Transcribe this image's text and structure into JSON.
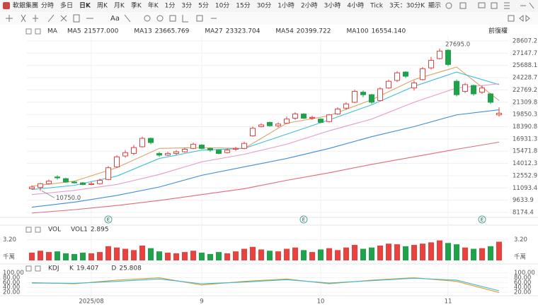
{
  "toolbar": {
    "symbol": "軟銀集團",
    "periods": [
      "分時",
      "多日",
      "日K",
      "周K",
      "月K",
      "季K",
      "年K",
      "1分",
      "3分",
      "5分",
      "10分",
      "15分",
      "30分",
      "1小時",
      "2小時",
      "3小時",
      "4小時",
      "Tick",
      "3天：30分K"
    ],
    "active_period": "日K",
    "display": "顯示"
  },
  "chart_data": [
    {
      "type": "candlestick",
      "indicator_label": "MA",
      "adjust_label": "前復權",
      "categories": [
        null,
        null,
        null,
        null,
        null,
        null,
        null,
        "2025/08",
        null,
        null,
        null,
        null,
        null,
        null,
        null,
        null,
        null,
        null,
        null,
        null,
        "9",
        null,
        null,
        null,
        null,
        null,
        null,
        null,
        null,
        null,
        null,
        null,
        null,
        null,
        "10",
        null,
        null,
        null,
        null,
        null,
        null,
        null,
        null,
        null,
        null,
        null,
        null,
        null,
        null,
        "11",
        null,
        null,
        null,
        null,
        null,
        null
      ],
      "events": [
        null,
        null,
        null,
        null,
        null,
        null,
        null,
        null,
        null,
        "E",
        null,
        null,
        null,
        null,
        null,
        null,
        null,
        null,
        null,
        null,
        null,
        null,
        null,
        null,
        null,
        null,
        null,
        null,
        null,
        null,
        null,
        null,
        "E",
        null,
        null,
        null,
        null,
        null,
        null,
        null,
        null,
        null,
        null,
        null,
        null,
        null,
        null,
        null,
        null,
        null,
        null,
        null,
        null,
        "E",
        null,
        null
      ],
      "open": [
        11000,
        11150,
        11600,
        12400,
        12200,
        11800,
        11700,
        11500,
        11600,
        12100,
        13600,
        14900,
        15200,
        16000,
        17000,
        15200,
        15000,
        15200,
        15400,
        15800,
        16200,
        15800,
        15600,
        15300,
        15700,
        15800,
        17300,
        18400,
        18900,
        18500,
        18800,
        19400,
        19900,
        19400,
        19300,
        19000,
        19900,
        20600,
        21300,
        22500,
        22200,
        21500,
        23000,
        23900,
        24900,
        23000,
        24000,
        25400,
        26500,
        27500,
        23800,
        22600,
        23300,
        22500,
        22300,
        19800
      ],
      "high": [
        11400,
        11700,
        12100,
        12600,
        12300,
        11950,
        11800,
        11800,
        12200,
        13700,
        15000,
        15600,
        16200,
        17200,
        17100,
        15400,
        15400,
        15600,
        15900,
        16500,
        16300,
        15900,
        15700,
        15800,
        16000,
        16600,
        18400,
        18800,
        19000,
        18900,
        19600,
        20100,
        20000,
        19700,
        19400,
        19900,
        20700,
        21300,
        22800,
        22700,
        22300,
        23100,
        24000,
        25000,
        25000,
        23900,
        25500,
        26700,
        27695,
        27600,
        24000,
        23600,
        23400,
        23300,
        22400,
        20700
      ],
      "low": [
        10900,
        10750,
        11500,
        12100,
        11700,
        11600,
        11400,
        11400,
        11500,
        12000,
        13500,
        14700,
        15000,
        15900,
        16300,
        14800,
        14900,
        15000,
        15300,
        15700,
        15700,
        15400,
        15100,
        15200,
        15500,
        15700,
        17200,
        18300,
        18400,
        18300,
        18700,
        19200,
        19300,
        19200,
        18800,
        18900,
        19800,
        20400,
        21200,
        21900,
        21100,
        21400,
        22900,
        23700,
        24200,
        22700,
        23900,
        25200,
        26400,
        25600,
        22000,
        22400,
        22100,
        22300,
        21100,
        19600
      ],
      "close": [
        11200,
        11600,
        11900,
        12300,
        11800,
        11700,
        11500,
        11600,
        12000,
        13500,
        14800,
        15300,
        15900,
        17000,
        16500,
        15000,
        15200,
        15400,
        15700,
        16300,
        15800,
        15600,
        15200,
        15600,
        15800,
        16400,
        18200,
        18600,
        18500,
        18700,
        19300,
        19900,
        19400,
        19500,
        18900,
        19800,
        20500,
        21100,
        22600,
        22200,
        21300,
        22900,
        23800,
        24800,
        24400,
        23600,
        25300,
        26300,
        27400,
        25800,
        22200,
        23400,
        22300,
        23000,
        21300,
        20000
      ],
      "high_labels": [
        null,
        null,
        null,
        null,
        null,
        null,
        null,
        null,
        null,
        null,
        null,
        null,
        null,
        null,
        null,
        null,
        null,
        null,
        null,
        null,
        null,
        null,
        null,
        null,
        null,
        null,
        null,
        null,
        null,
        null,
        null,
        null,
        null,
        null,
        null,
        null,
        null,
        null,
        null,
        null,
        null,
        null,
        null,
        null,
        null,
        null,
        null,
        null,
        "27695.0",
        null,
        null,
        null,
        null,
        null,
        null,
        null
      ],
      "low_labels": [
        null,
        "10750.0",
        null,
        null,
        null,
        null,
        null,
        null,
        null,
        null,
        null,
        null,
        null,
        null,
        null,
        null,
        null,
        null,
        null,
        null,
        null,
        null,
        null,
        null,
        null,
        null,
        null,
        null,
        null,
        null,
        null,
        null,
        null,
        null,
        null,
        null,
        null,
        null,
        null,
        null,
        null,
        null,
        null,
        null,
        null,
        null,
        null,
        null,
        null,
        null,
        null,
        null,
        null,
        null,
        null,
        null
      ],
      "up_color": "#e8413e",
      "down_color": "#1fa34a",
      "ylim": [
        8174.4,
        28607.2
      ],
      "yticks": [
        28607.2,
        27147.7,
        25688.1,
        24228.7,
        22769.2,
        21309.8,
        19850.3,
        18390.8,
        16931.3,
        15471.8,
        14012.3,
        12552.9,
        11093.4,
        9633.9,
        8174.4
      ],
      "grid": true,
      "x": [
        0,
        5,
        10,
        15,
        20,
        25,
        30,
        35,
        40,
        45,
        50,
        55
      ],
      "series": [
        {
          "name": "MA5",
          "color": "#d8a56a",
          "legend_value": 21577,
          "legend_label": "21577.000",
          "values": [
            11300,
            11900,
            13500,
            15800,
            15900,
            15800,
            18800,
            19700,
            21600,
            24000,
            25500,
            21500
          ]
        },
        {
          "name": "MA13",
          "color": "#3fbfd8",
          "legend_value": 23665.769,
          "legend_label": "23665.769",
          "values": [
            10900,
            11400,
            12500,
            14600,
            15600,
            15800,
            17500,
            19200,
            21000,
            23200,
            24900,
            23400
          ]
        },
        {
          "name": "MA27",
          "color": "#e79ccb",
          "legend_value": 23323.704,
          "legend_label": "23323.704",
          "values": [
            10300,
            10800,
            11500,
            12700,
            14200,
            15100,
            16300,
            17900,
            19300,
            21300,
            23000,
            23500
          ]
        },
        {
          "name": "MA54",
          "color": "#3b8de0",
          "legend_value": 20399.722,
          "legend_label": "20399.722",
          "values": [
            8800,
            9400,
            10200,
            11200,
            12600,
            13600,
            14600,
            15800,
            17200,
            18400,
            19800,
            20400
          ]
        },
        {
          "name": "MA100",
          "color": "#e06a7c",
          "legend_value": 16554.14,
          "legend_label": "16554.140",
          "values": [
            8100,
            8500,
            9000,
            9600,
            10300,
            11000,
            12000,
            12900,
            13900,
            14800,
            15700,
            16550
          ]
        }
      ]
    },
    {
      "type": "bar",
      "title": "VOL",
      "unit": "千萬",
      "series": [
        {
          "name": "VOL1",
          "color": "#e8413e",
          "legend_value": 2.895,
          "legend_label": "2.895",
          "values": [
            1.2,
            1.5,
            1.3,
            1.4,
            1.1,
            1.0,
            1.2,
            1.1,
            1.3,
            2.2,
            2.0,
            1.8,
            1.6,
            2.3,
            1.9,
            1.4,
            1.2,
            1.1,
            1.3,
            1.5,
            1.2,
            1.0,
            1.3,
            1.1,
            1.4,
            1.8,
            2.1,
            1.7,
            1.5,
            1.4,
            1.8,
            2.0,
            1.6,
            1.3,
            1.7,
            1.9,
            1.6,
            2.0,
            2.4,
            1.8,
            2.0,
            2.3,
            2.6,
            2.5,
            2.2,
            2.4,
            2.6,
            2.8,
            3.1,
            2.7,
            2.5,
            2.0,
            1.8,
            1.9,
            2.2,
            2.9
          ]
        }
      ],
      "ylim": [
        0,
        3.5
      ],
      "yticks": [
        {
          "value": 3.2,
          "label": "3.20"
        }
      ]
    },
    {
      "type": "line",
      "title": "KDJ",
      "x": [
        0,
        5,
        10,
        15,
        20,
        25,
        30,
        35,
        40,
        45,
        50,
        55
      ],
      "series": [
        {
          "name": "K",
          "color": "#d9a030",
          "legend_value": 19.407,
          "legend_label": "19.407",
          "values": [
            60,
            55,
            70,
            80,
            50,
            65,
            75,
            55,
            70,
            80,
            65,
            19
          ]
        },
        {
          "name": "D",
          "color": "#40b8d0",
          "legend_value": 25.808,
          "legend_label": "25.808",
          "values": [
            58,
            57,
            65,
            75,
            55,
            62,
            72,
            58,
            68,
            78,
            70,
            26
          ]
        }
      ],
      "ylim": [
        10,
        110
      ],
      "yticks": [
        {
          "value": 100,
          "label": "100.00"
        },
        {
          "value": 80,
          "label": "80.00"
        },
        {
          "value": 60,
          "label": "60.00"
        },
        {
          "value": 40,
          "label": "40.00"
        },
        {
          "value": 20,
          "label": "20.00"
        }
      ]
    }
  ]
}
